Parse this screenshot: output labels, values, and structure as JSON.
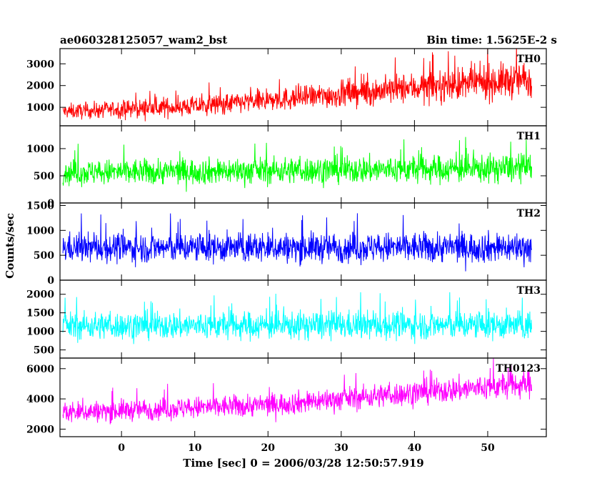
{
  "header": {
    "left_title": "ae060328125057_wam2_bst",
    "right_title": "Bin time: 1.5625E-2 s"
  },
  "chart_data": {
    "type": "line",
    "xlabel": "Time [sec] 0 = 2006/03/28 12:50:57.919",
    "ylabel": "Counts/sec",
    "xlim": [
      -8.4,
      58
    ],
    "x_ticks": [
      0,
      10,
      20,
      30,
      40,
      50
    ],
    "x_range_data": [
      -8,
      56
    ],
    "bin_time_s": 0.015625,
    "panels": [
      {
        "name": "TH0",
        "color": "#ff0000",
        "ylim": [
          150,
          3700
        ],
        "y_ticks": [
          1000,
          2000,
          3000
        ],
        "trend": [
          [
            -8,
            800
          ],
          [
            10,
            1050
          ],
          [
            25,
            1450
          ],
          [
            40,
            1900
          ],
          [
            56,
            2300
          ]
        ],
        "spread": [
          [
            -8,
            450
          ],
          [
            20,
            650
          ],
          [
            40,
            900
          ],
          [
            56,
            1100
          ]
        ]
      },
      {
        "name": "TH1",
        "color": "#00ff00",
        "ylim": [
          0,
          1420
        ],
        "y_ticks": [
          0,
          500,
          1000
        ],
        "trend": [
          [
            -8,
            560
          ],
          [
            56,
            640
          ]
        ],
        "spread": [
          [
            -8,
            300
          ],
          [
            56,
            340
          ]
        ]
      },
      {
        "name": "TH2",
        "color": "#0000ff",
        "ylim": [
          0,
          1550
        ],
        "y_ticks": [
          0,
          500,
          1000,
          1500
        ],
        "trend": [
          [
            -8,
            650
          ],
          [
            56,
            660
          ]
        ],
        "spread": [
          [
            -8,
            380
          ],
          [
            56,
            400
          ]
        ]
      },
      {
        "name": "TH3",
        "color": "#00ffff",
        "ylim": [
          280,
          2380
        ],
        "y_ticks": [
          500,
          1000,
          1500,
          2000
        ],
        "trend": [
          [
            -8,
            1150
          ],
          [
            56,
            1170
          ]
        ],
        "spread": [
          [
            -8,
            480
          ],
          [
            56,
            500
          ]
        ]
      },
      {
        "name": "TH0123",
        "color": "#ff00ff",
        "ylim": [
          1500,
          6700
        ],
        "y_ticks": [
          2000,
          4000,
          6000
        ],
        "trend": [
          [
            -8,
            3100
          ],
          [
            20,
            3600
          ],
          [
            40,
            4400
          ],
          [
            56,
            5000
          ]
        ],
        "spread": [
          [
            -8,
            900
          ],
          [
            30,
            1000
          ],
          [
            56,
            1150
          ]
        ]
      }
    ]
  }
}
